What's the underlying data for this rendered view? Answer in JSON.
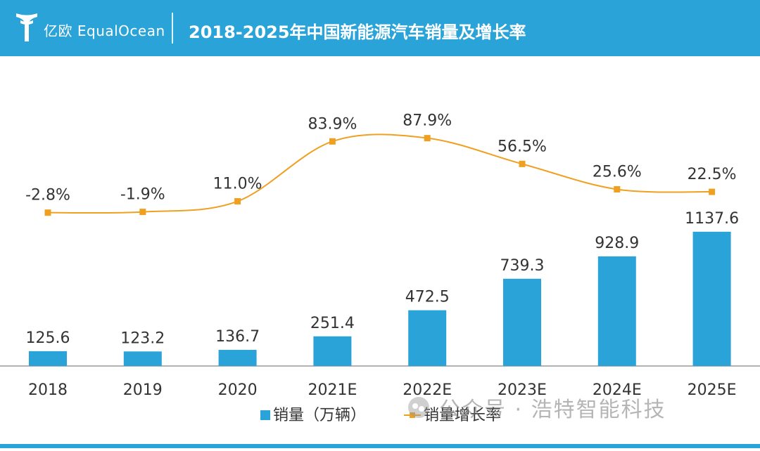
{
  "header": {
    "logo_text": "亿欧 EqualOcean",
    "title": "2018-2025年中国新能源汽车销量及增长率",
    "background": "#2aa3d8"
  },
  "watermark": {
    "text": "公众号 · 浩特智能科技"
  },
  "chart_data": {
    "type": "bar",
    "categories": [
      "2018",
      "2019",
      "2020",
      "2021E",
      "2022E",
      "2023E",
      "2024E",
      "2025E"
    ],
    "series": [
      {
        "name": "销量（万辆）",
        "type": "bar",
        "color": "#2aa3d8",
        "values": [
          125.6,
          123.2,
          136.7,
          251.4,
          472.5,
          739.3,
          928.9,
          1137.6
        ],
        "labels": [
          "125.6",
          "123.2",
          "136.7",
          "251.4",
          "472.5",
          "739.3",
          "928.9",
          "1137.6"
        ]
      },
      {
        "name": "销量增长率",
        "type": "line",
        "color": "#f0a020",
        "values": [
          -2.8,
          -1.9,
          11.0,
          83.9,
          87.9,
          56.5,
          25.6,
          22.5
        ],
        "labels": [
          "-2.8%",
          "-1.9%",
          "11.0%",
          "83.9%",
          "87.9%",
          "56.5%",
          "25.6%",
          "22.5%"
        ]
      }
    ],
    "ylim": [
      0,
      1250
    ],
    "y2lim": [
      -160,
      160
    ],
    "grid": false,
    "legend": "bottom"
  }
}
